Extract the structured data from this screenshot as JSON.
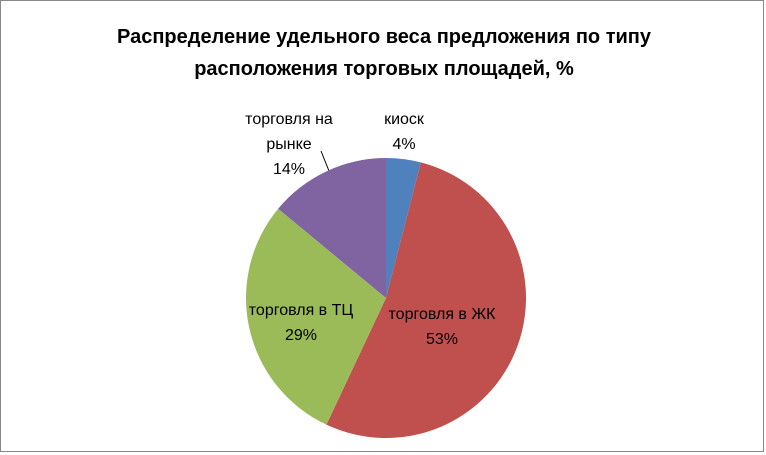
{
  "chart_data": {
    "type": "pie",
    "title": "Распределение удельного веса предложения по типу расположения торговых площадей, %",
    "categories": [
      "киоск",
      "торговля в ЖК",
      "торговля в ТЦ",
      "торговля на рынке"
    ],
    "values": [
      4,
      53,
      29,
      14
    ],
    "value_labels": [
      "4%",
      "53%",
      "29%",
      "14%"
    ],
    "colors": [
      "#4f81bd",
      "#c0504d",
      "#9bbb59",
      "#8064a2"
    ]
  }
}
